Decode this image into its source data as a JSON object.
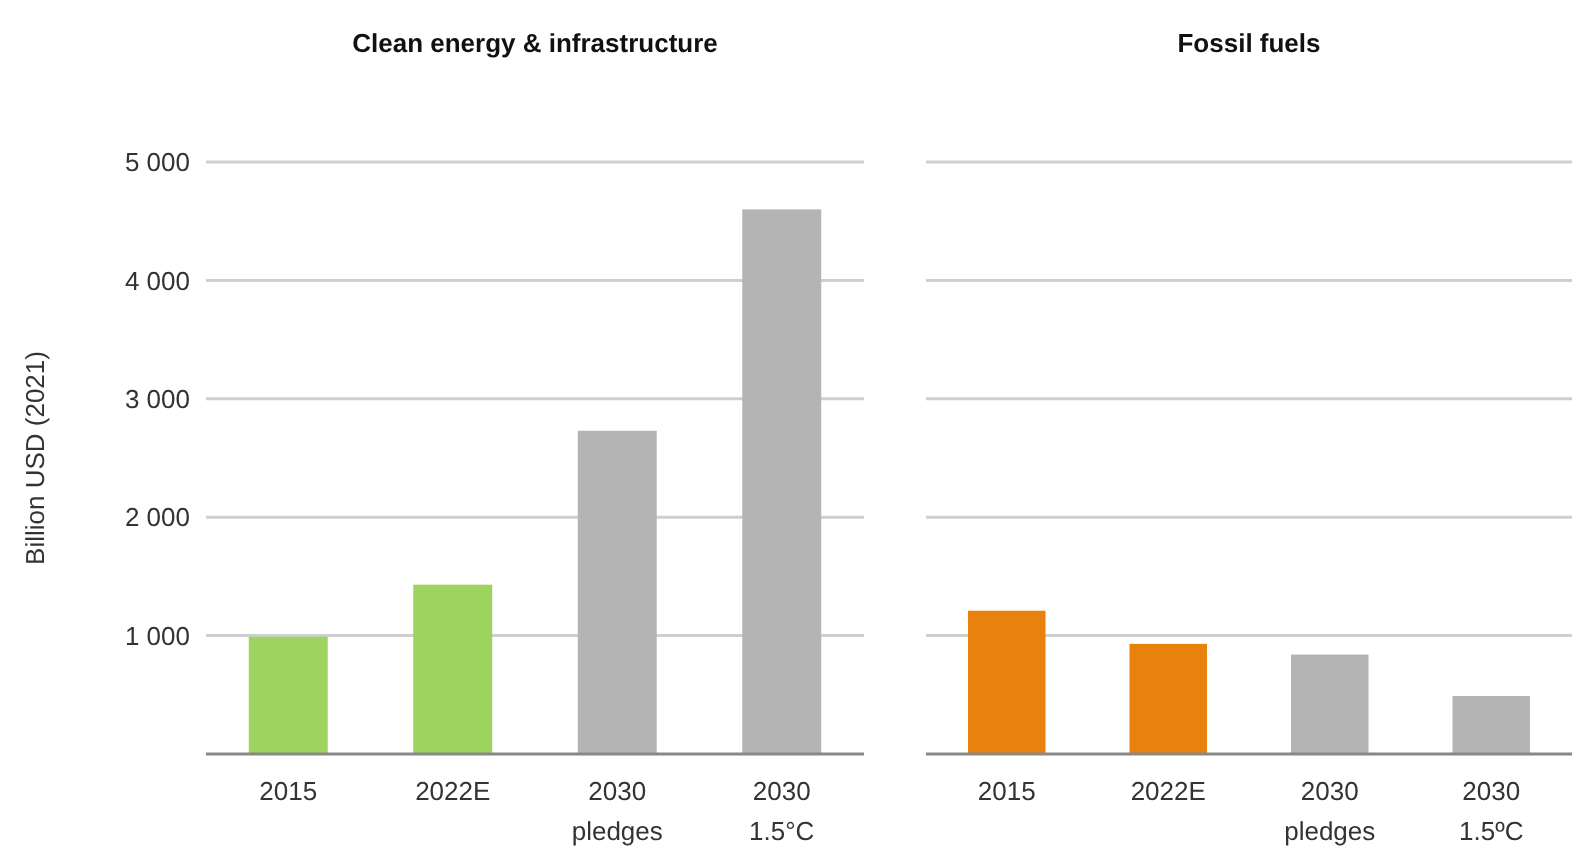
{
  "chart_data": [
    {
      "type": "bar",
      "title": "Clean energy & infrastructure",
      "ylabel": "Billion USD (2021)",
      "categories": [
        "2015",
        "2022E",
        "2030\npledges",
        "2030\n1.5°C"
      ],
      "series": [
        {
          "values": [
            990,
            1430,
            2730,
            4600
          ],
          "colors": [
            "#9fd35f",
            "#9fd35f",
            "#b4b4b4",
            "#b4b4b4"
          ]
        }
      ],
      "ylim": [
        0,
        5000
      ],
      "yticks": [
        {
          "value": 1000,
          "label": "1 000"
        },
        {
          "value": 2000,
          "label": "2 000"
        },
        {
          "value": 3000,
          "label": "3 000"
        },
        {
          "value": 4000,
          "label": "4 000"
        },
        {
          "value": 5000,
          "label": "5 000"
        }
      ],
      "grid": "y"
    },
    {
      "type": "bar",
      "title": "Fossil fuels",
      "categories": [
        "2015",
        "2022E",
        "2030\npledges",
        "2030\n1.5ºC"
      ],
      "series": [
        {
          "values": [
            1210,
            930,
            840,
            490
          ],
          "colors": [
            "#e8820c",
            "#e8820c",
            "#b4b4b4",
            "#b4b4b4"
          ]
        }
      ],
      "ylim": [
        0,
        5000
      ],
      "yticks": [
        {
          "value": 1000,
          "label": null
        },
        {
          "value": 2000,
          "label": null
        },
        {
          "value": 3000,
          "label": null
        },
        {
          "value": 4000,
          "label": null
        },
        {
          "value": 5000,
          "label": null
        }
      ],
      "grid": "y",
      "tick_labels": "x"
    }
  ]
}
